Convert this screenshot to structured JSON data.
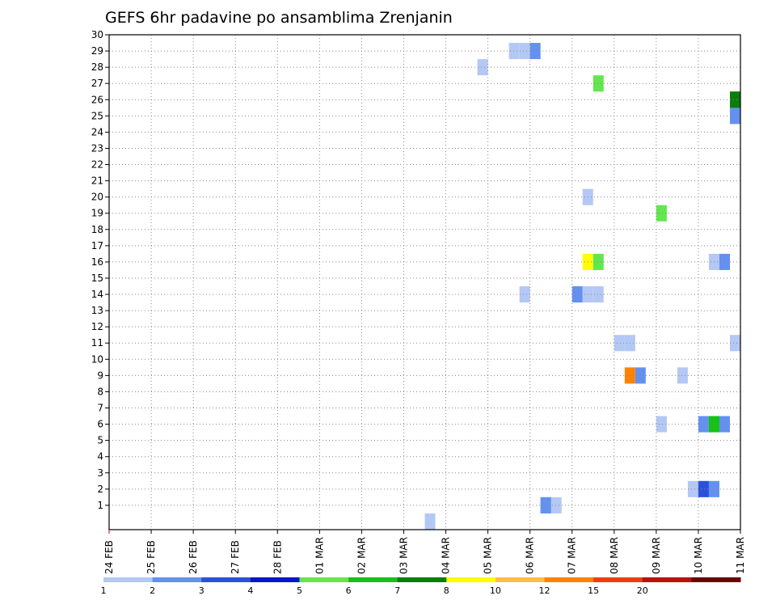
{
  "chart_data": {
    "type": "heatmap",
    "title": "GEFS 6hr padavine po ansamblima Zrenjanin",
    "xlabel": "",
    "ylabel": "",
    "x_tick_labels": [
      "24 FEB",
      "25 FEB",
      "26 FEB",
      "27 FEB",
      "28 FEB",
      "01 MAR",
      "02 MAR",
      "03 MAR",
      "04 MAR",
      "05 MAR",
      "06 MAR",
      "07 MAR",
      "08 MAR",
      "09 MAR",
      "10 MAR",
      "11 MAR"
    ],
    "y_tick_labels": [
      "1",
      "2",
      "3",
      "4",
      "5",
      "6",
      "7",
      "8",
      "9",
      "10",
      "11",
      "12",
      "13",
      "14",
      "15",
      "16",
      "17",
      "18",
      "19",
      "20",
      "21",
      "22",
      "23",
      "24",
      "25",
      "26",
      "27",
      "28",
      "29",
      "30"
    ],
    "xlim_days": [
      0,
      15
    ],
    "ylim_members": [
      0,
      30
    ],
    "grid": true,
    "legend_position": "bottom",
    "legend": {
      "labels": [
        "1",
        "2",
        "3",
        "4",
        "5",
        "6",
        "7",
        "8",
        "10",
        "12",
        "15",
        "20"
      ],
      "colors": [
        "#b4c8f5",
        "#6491f0",
        "#2d50dc",
        "#0a14c8",
        "#64e650",
        "#14c314",
        "#0a7d0a",
        "#ffff00",
        "#ffbe46",
        "#ff8200",
        "#f03c14",
        "#be0f0f",
        "#6e0000"
      ]
    },
    "cells": [
      {
        "member": 0,
        "day": 7.5,
        "color": "#b4c8f5"
      },
      {
        "member": 1,
        "day": 10.25,
        "color": "#6491f0"
      },
      {
        "member": 1,
        "day": 10.5,
        "color": "#b4c8f5"
      },
      {
        "member": 1,
        "day": 10.25,
        "color": "#6491f0"
      },
      {
        "member": 2,
        "day": 13.75,
        "color": "#b4c8f5"
      },
      {
        "member": 2,
        "day": 14.0,
        "color": "#2d50dc"
      },
      {
        "member": 2,
        "day": 14.25,
        "color": "#6491f0"
      },
      {
        "member": 6,
        "day": 13.0,
        "color": "#b4c8f5"
      },
      {
        "member": 6,
        "day": 14.0,
        "color": "#6491f0"
      },
      {
        "member": 6,
        "day": 14.25,
        "color": "#14c314"
      },
      {
        "member": 6,
        "day": 14.5,
        "color": "#6491f0"
      },
      {
        "member": 9,
        "day": 12.25,
        "color": "#ff8200"
      },
      {
        "member": 9,
        "day": 12.5,
        "color": "#6491f0"
      },
      {
        "member": 9,
        "day": 13.5,
        "color": "#b4c8f5"
      },
      {
        "member": 11,
        "day": 12.0,
        "color": "#b4c8f5"
      },
      {
        "member": 11,
        "day": 12.25,
        "color": "#b4c8f5"
      },
      {
        "member": 11,
        "day": 14.95,
        "color": "#b4c8f5"
      },
      {
        "member": 14,
        "day": 9.75,
        "color": "#b4c8f5"
      },
      {
        "member": 14,
        "day": 11.0,
        "color": "#6491f0"
      },
      {
        "member": 14,
        "day": 11.25,
        "color": "#b4c8f5"
      },
      {
        "member": 14,
        "day": 11.5,
        "color": "#b4c8f5"
      },
      {
        "member": 16,
        "day": 11.25,
        "color": "#ffff00"
      },
      {
        "member": 16,
        "day": 11.5,
        "color": "#64e650"
      },
      {
        "member": 16,
        "day": 14.25,
        "color": "#b4c8f5"
      },
      {
        "member": 16,
        "day": 14.5,
        "color": "#6491f0"
      },
      {
        "member": 19,
        "day": 13.0,
        "color": "#64e650"
      },
      {
        "member": 20,
        "day": 11.25,
        "color": "#b4c8f5"
      },
      {
        "member": 25,
        "day": 14.95,
        "color": "#6491f0"
      },
      {
        "member": 26,
        "day": 14.75,
        "color": "#14c314"
      },
      {
        "member": 26,
        "day": 14.95,
        "color": "#0a7d0a"
      },
      {
        "member": 27,
        "day": 11.5,
        "color": "#64e650"
      },
      {
        "member": 28,
        "day": 8.75,
        "color": "#b4c8f5"
      },
      {
        "member": 29,
        "day": 9.5,
        "color": "#b4c8f5"
      },
      {
        "member": 29,
        "day": 9.75,
        "color": "#b4c8f5"
      },
      {
        "member": 29,
        "day": 10.0,
        "color": "#6491f0"
      }
    ]
  }
}
